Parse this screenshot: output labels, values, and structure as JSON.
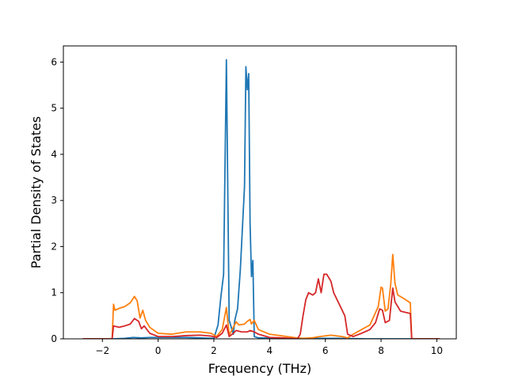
{
  "chart_data": {
    "type": "line",
    "xlabel": "Frequency (THz)",
    "ylabel": "Partial Density of States",
    "xlim": [
      -3.4,
      10.7
    ],
    "ylim": [
      0,
      6.35
    ],
    "xticks": [
      -2,
      0,
      2,
      4,
      6,
      8,
      10
    ],
    "xtick_labels": [
      "−2",
      "0",
      "2",
      "4",
      "6",
      "8",
      "10"
    ],
    "yticks": [
      0,
      1,
      2,
      3,
      4,
      5,
      6
    ],
    "ytick_labels": [
      "0",
      "1",
      "2",
      "3",
      "4",
      "5",
      "6"
    ],
    "grid": false,
    "legend": "none",
    "series": [
      {
        "color": "#1f77b4",
        "points": [
          [
            -2.7,
            0
          ],
          [
            -1.6,
            0
          ],
          [
            -1.2,
            0.01
          ],
          [
            -0.9,
            0.03
          ],
          [
            -0.6,
            0.02
          ],
          [
            -0.3,
            0.03
          ],
          [
            0,
            0.03
          ],
          [
            0.5,
            0.03
          ],
          [
            1,
            0.03
          ],
          [
            1.5,
            0.02
          ],
          [
            2.0,
            0.01
          ],
          [
            2.15,
            0.3
          ],
          [
            2.25,
            0.9
          ],
          [
            2.35,
            1.4
          ],
          [
            2.45,
            6.05
          ],
          [
            2.55,
            0.4
          ],
          [
            2.7,
            0.1
          ],
          [
            2.75,
            0.4
          ],
          [
            2.85,
            0.65
          ],
          [
            2.95,
            1.5
          ],
          [
            3.1,
            3.3
          ],
          [
            3.15,
            5.9
          ],
          [
            3.2,
            5.4
          ],
          [
            3.25,
            5.75
          ],
          [
            3.3,
            2.5
          ],
          [
            3.35,
            1.35
          ],
          [
            3.4,
            1.7
          ],
          [
            3.45,
            0.05
          ],
          [
            3.6,
            0.02
          ],
          [
            4.5,
            0.01
          ],
          [
            5.5,
            0.01
          ],
          [
            6.5,
            0.01
          ],
          [
            7.5,
            0
          ],
          [
            9.1,
            0
          ],
          [
            10.1,
            0
          ]
        ]
      },
      {
        "color": "#ff7f0e",
        "points": [
          [
            -2.7,
            0
          ],
          [
            -1.65,
            0
          ],
          [
            -1.6,
            0.75
          ],
          [
            -1.55,
            0.62
          ],
          [
            -1.4,
            0.66
          ],
          [
            -1.2,
            0.7
          ],
          [
            -1.0,
            0.78
          ],
          [
            -0.85,
            0.92
          ],
          [
            -0.75,
            0.82
          ],
          [
            -0.65,
            0.45
          ],
          [
            -0.55,
            0.62
          ],
          [
            -0.45,
            0.4
          ],
          [
            -0.3,
            0.25
          ],
          [
            0,
            0.12
          ],
          [
            0.5,
            0.1
          ],
          [
            1.0,
            0.15
          ],
          [
            1.5,
            0.15
          ],
          [
            1.9,
            0.12
          ],
          [
            2.1,
            0.05
          ],
          [
            2.3,
            0.2
          ],
          [
            2.45,
            0.68
          ],
          [
            2.55,
            0.08
          ],
          [
            2.7,
            0.25
          ],
          [
            2.8,
            0.37
          ],
          [
            2.9,
            0.3
          ],
          [
            3.1,
            0.32
          ],
          [
            3.2,
            0.38
          ],
          [
            3.3,
            0.42
          ],
          [
            3.35,
            0.32
          ],
          [
            3.45,
            0.4
          ],
          [
            3.6,
            0.2
          ],
          [
            4.0,
            0.1
          ],
          [
            4.5,
            0.06
          ],
          [
            5.0,
            0.02
          ],
          [
            5.2,
            0.01
          ],
          [
            5.5,
            0.02
          ],
          [
            5.8,
            0.05
          ],
          [
            6.2,
            0.08
          ],
          [
            6.6,
            0.05
          ],
          [
            6.8,
            0.02
          ],
          [
            7.0,
            0.1
          ],
          [
            7.3,
            0.2
          ],
          [
            7.6,
            0.3
          ],
          [
            7.9,
            0.7
          ],
          [
            8.0,
            1.12
          ],
          [
            8.05,
            1.1
          ],
          [
            8.15,
            0.6
          ],
          [
            8.25,
            0.65
          ],
          [
            8.35,
            1.2
          ],
          [
            8.42,
            1.83
          ],
          [
            8.5,
            1.2
          ],
          [
            8.6,
            0.95
          ],
          [
            8.8,
            0.88
          ],
          [
            9.0,
            0.8
          ],
          [
            9.05,
            0.78
          ],
          [
            9.1,
            0
          ],
          [
            10.1,
            0
          ]
        ]
      },
      {
        "color": "#d62728",
        "points": [
          [
            -2.7,
            0
          ],
          [
            -1.65,
            0
          ],
          [
            -1.6,
            0.28
          ],
          [
            -1.4,
            0.25
          ],
          [
            -1.2,
            0.28
          ],
          [
            -1.0,
            0.32
          ],
          [
            -0.85,
            0.44
          ],
          [
            -0.7,
            0.38
          ],
          [
            -0.6,
            0.22
          ],
          [
            -0.5,
            0.28
          ],
          [
            -0.3,
            0.12
          ],
          [
            0,
            0.05
          ],
          [
            0.5,
            0.05
          ],
          [
            1.0,
            0.07
          ],
          [
            1.5,
            0.08
          ],
          [
            1.9,
            0.06
          ],
          [
            2.1,
            0.03
          ],
          [
            2.3,
            0.12
          ],
          [
            2.45,
            0.3
          ],
          [
            2.55,
            0.05
          ],
          [
            2.7,
            0.12
          ],
          [
            2.8,
            0.18
          ],
          [
            3.0,
            0.15
          ],
          [
            3.2,
            0.15
          ],
          [
            3.3,
            0.18
          ],
          [
            3.45,
            0.15
          ],
          [
            3.6,
            0.1
          ],
          [
            4.0,
            0.03
          ],
          [
            4.5,
            0.02
          ],
          [
            5.0,
            0
          ],
          [
            5.1,
            0.1
          ],
          [
            5.2,
            0.5
          ],
          [
            5.3,
            0.85
          ],
          [
            5.4,
            1.0
          ],
          [
            5.55,
            0.95
          ],
          [
            5.65,
            1.0
          ],
          [
            5.75,
            1.3
          ],
          [
            5.85,
            1.0
          ],
          [
            5.95,
            1.4
          ],
          [
            6.05,
            1.4
          ],
          [
            6.15,
            1.3
          ],
          [
            6.2,
            1.25
          ],
          [
            6.3,
            1.0
          ],
          [
            6.5,
            0.75
          ],
          [
            6.7,
            0.5
          ],
          [
            6.8,
            0.1
          ],
          [
            7.0,
            0.05
          ],
          [
            7.3,
            0.12
          ],
          [
            7.6,
            0.2
          ],
          [
            7.8,
            0.35
          ],
          [
            7.95,
            0.65
          ],
          [
            8.05,
            0.62
          ],
          [
            8.15,
            0.35
          ],
          [
            8.3,
            0.4
          ],
          [
            8.42,
            1.1
          ],
          [
            8.5,
            0.8
          ],
          [
            8.7,
            0.6
          ],
          [
            8.9,
            0.57
          ],
          [
            9.05,
            0.55
          ],
          [
            9.1,
            0
          ],
          [
            10.1,
            0
          ]
        ]
      }
    ]
  }
}
